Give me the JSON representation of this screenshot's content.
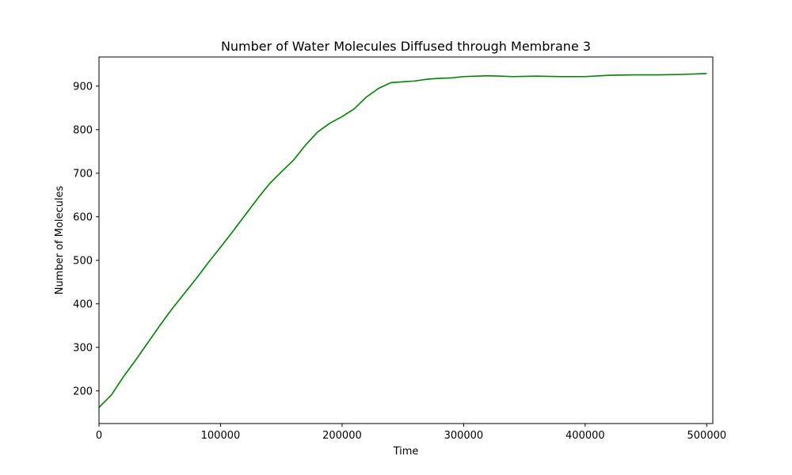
{
  "chart_data": {
    "type": "line",
    "title": "Number of Water Molecules Diffused through Membrane 3",
    "xlabel": "Time",
    "ylabel": "Number of Molecules",
    "xlim": [
      0,
      505000
    ],
    "ylim": [
      125,
      967
    ],
    "grid": false,
    "x_ticks": [
      0,
      100000,
      200000,
      300000,
      400000,
      500000
    ],
    "x_tick_labels": [
      "0",
      "100000",
      "200000",
      "300000",
      "400000",
      "500000"
    ],
    "y_ticks": [
      200,
      300,
      400,
      500,
      600,
      700,
      800,
      900
    ],
    "y_tick_labels": [
      "200",
      "300",
      "400",
      "500",
      "600",
      "700",
      "800",
      "900"
    ],
    "series": [
      {
        "color": "#008000",
        "x": [
          0,
          10000,
          20000,
          30000,
          40000,
          50000,
          60000,
          70000,
          80000,
          90000,
          100000,
          110000,
          120000,
          130000,
          140000,
          150000,
          160000,
          170000,
          180000,
          190000,
          200000,
          210000,
          220000,
          230000,
          240000,
          250000,
          260000,
          270000,
          280000,
          290000,
          300000,
          320000,
          340000,
          360000,
          380000,
          400000,
          420000,
          440000,
          460000,
          480000,
          500000
        ],
        "values": [
          162,
          190,
          232,
          270,
          310,
          350,
          388,
          423,
          458,
          495,
          530,
          566,
          603,
          640,
          675,
          703,
          730,
          765,
          795,
          815,
          830,
          848,
          875,
          895,
          908,
          910,
          912,
          916,
          918,
          919,
          922,
          924,
          922,
          923,
          922,
          922,
          925,
          926,
          926,
          927,
          929
        ]
      }
    ]
  }
}
